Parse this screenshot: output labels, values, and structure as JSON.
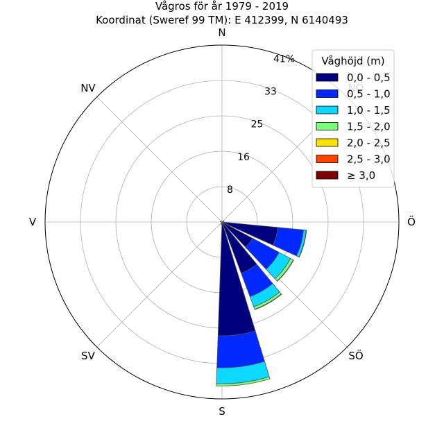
{
  "chart_data": {
    "type": "wind-rose",
    "title": "Vågros för år 1979 - 2019",
    "subtitle": "Koordinat (Sweref 99 TM): E 412399, N 6140493",
    "direction_labels": [
      "N",
      "NO",
      "Ö",
      "SÖ",
      "S",
      "SV",
      "V",
      "NV"
    ],
    "radial_ticks": [
      "8",
      "16",
      "25",
      "33",
      "41%"
    ],
    "radial_tick_values": [
      8.2,
      16.4,
      24.6,
      32.8,
      41.0
    ],
    "r_max": 41.0,
    "legend": {
      "title": "Våghöjd (m)",
      "placement": "top-right",
      "entries": [
        "0,0 - 0,5",
        "0,5 - 1,0",
        "1,0 - 1,5",
        "1,5 - 2,0",
        "2,0 - 2,5",
        "2,5 - 3,0",
        "≥ 3,0"
      ],
      "colors": [
        "#00007f",
        "#0028ff",
        "#0dd8ff",
        "#7bff7b",
        "#ffe200",
        "#ff4500",
        "#7f0000"
      ]
    },
    "sectors": [
      {
        "direction_deg": 105,
        "cumulative": [
          13.0,
          19.0,
          19.6,
          19.7,
          19.7,
          19.7,
          19.7
        ]
      },
      {
        "direction_deg": 127.5,
        "cumulative": [
          8.0,
          15.0,
          18.0,
          18.7,
          18.8,
          18.8,
          18.8
        ]
      },
      {
        "direction_deg": 150,
        "cumulative": [
          12.7,
          18.5,
          21.0,
          21.6,
          21.7,
          21.7,
          21.7
        ]
      },
      {
        "direction_deg": 172.5,
        "cumulative": [
          26.4,
          33.8,
          37.5,
          38.0,
          38.0,
          38.0,
          38.0
        ]
      },
      {
        "direction_deg": 195,
        "cumulative": [
          0.6,
          0.6,
          0.6,
          0.6,
          0.6,
          0.6,
          0.6
        ]
      },
      {
        "direction_deg": 285,
        "cumulative": [
          0.4,
          0.4,
          0.4,
          0.4,
          0.4,
          0.4,
          0.4
        ]
      },
      {
        "direction_deg": 60,
        "cumulative": [
          0.5,
          0.5,
          0.5,
          0.5,
          0.5,
          0.5,
          0.5
        ]
      }
    ],
    "grid": true
  }
}
